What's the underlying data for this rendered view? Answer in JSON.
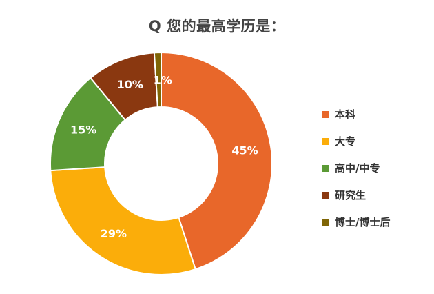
{
  "chart_data": {
    "type": "pie",
    "donut": true,
    "title": "Q 您的最高学历是：",
    "unit": "%",
    "legend_position": "right",
    "series": [
      {
        "name": "本科",
        "value": 45,
        "label": "45%",
        "color": "#E8672A"
      },
      {
        "name": "大专",
        "value": 29,
        "label": "29%",
        "color": "#FBAD0A"
      },
      {
        "name": "高中/中专",
        "value": 15,
        "label": "15%",
        "color": "#5B9A35"
      },
      {
        "name": "研究生",
        "value": 10,
        "label": "10%",
        "color": "#8A3810"
      },
      {
        "name": "博士/博士后",
        "value": 1,
        "label": "1%",
        "color": "#7F6506"
      }
    ]
  }
}
